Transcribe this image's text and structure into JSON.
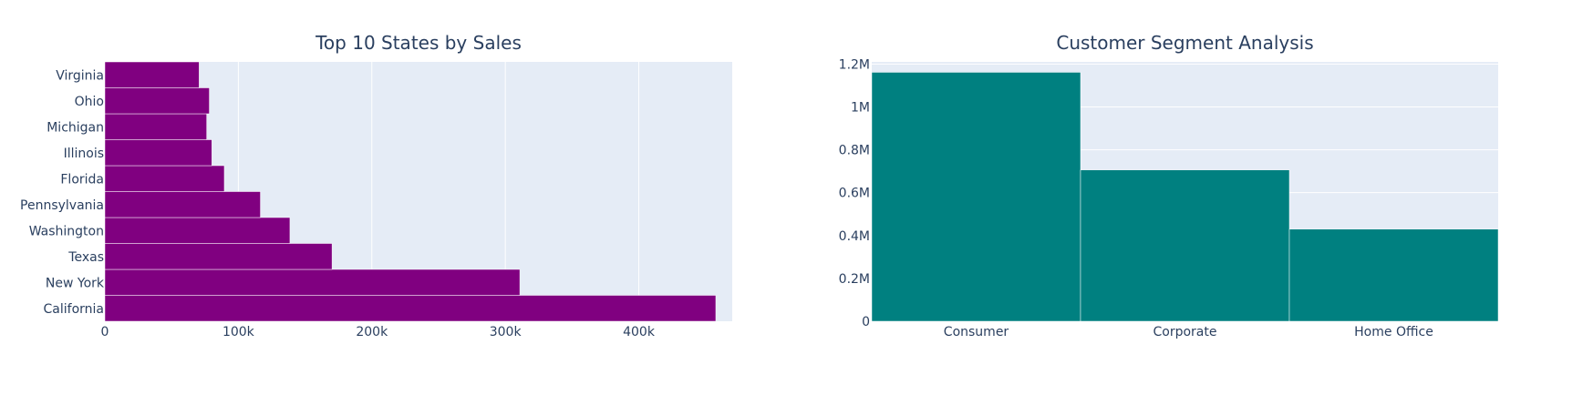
{
  "chart_data": [
    {
      "type": "bar",
      "orientation": "horizontal",
      "title": "Top 10 States by Sales",
      "categories": [
        "California",
        "New York",
        "Texas",
        "Washington",
        "Pennsylvania",
        "Florida",
        "Illinois",
        "Michigan",
        "Ohio",
        "Virginia"
      ],
      "values": [
        457688,
        310876,
        170188,
        138641,
        116512,
        89474,
        80166,
        76270,
        78258,
        70637
      ],
      "xlim": [
        0,
        470000
      ],
      "x_ticks": [
        {
          "value": 0,
          "label": "0"
        },
        {
          "value": 100000,
          "label": "100k"
        },
        {
          "value": 200000,
          "label": "200k"
        },
        {
          "value": 300000,
          "label": "300k"
        },
        {
          "value": 400000,
          "label": "400k"
        }
      ],
      "xlabel": "",
      "ylabel": "",
      "grid": true,
      "color": "#800080",
      "plot_bg": "#e5ecf6"
    },
    {
      "type": "bar",
      "title": "Customer Segment Analysis",
      "categories": [
        "Consumer",
        "Corporate",
        "Home Office"
      ],
      "values": [
        1161401,
        706146,
        429653
      ],
      "ylim": [
        0,
        1210000
      ],
      "y_ticks": [
        {
          "value": 0,
          "label": "0"
        },
        {
          "value": 200000,
          "label": "0.2M"
        },
        {
          "value": 400000,
          "label": "0.4M"
        },
        {
          "value": 600000,
          "label": "0.6M"
        },
        {
          "value": 800000,
          "label": "0.8M"
        },
        {
          "value": 1000000,
          "label": "1M"
        },
        {
          "value": 1200000,
          "label": "1.2M"
        }
      ],
      "xlabel": "",
      "ylabel": "",
      "grid": true,
      "color": "#008080",
      "plot_bg": "#e5ecf6"
    }
  ]
}
